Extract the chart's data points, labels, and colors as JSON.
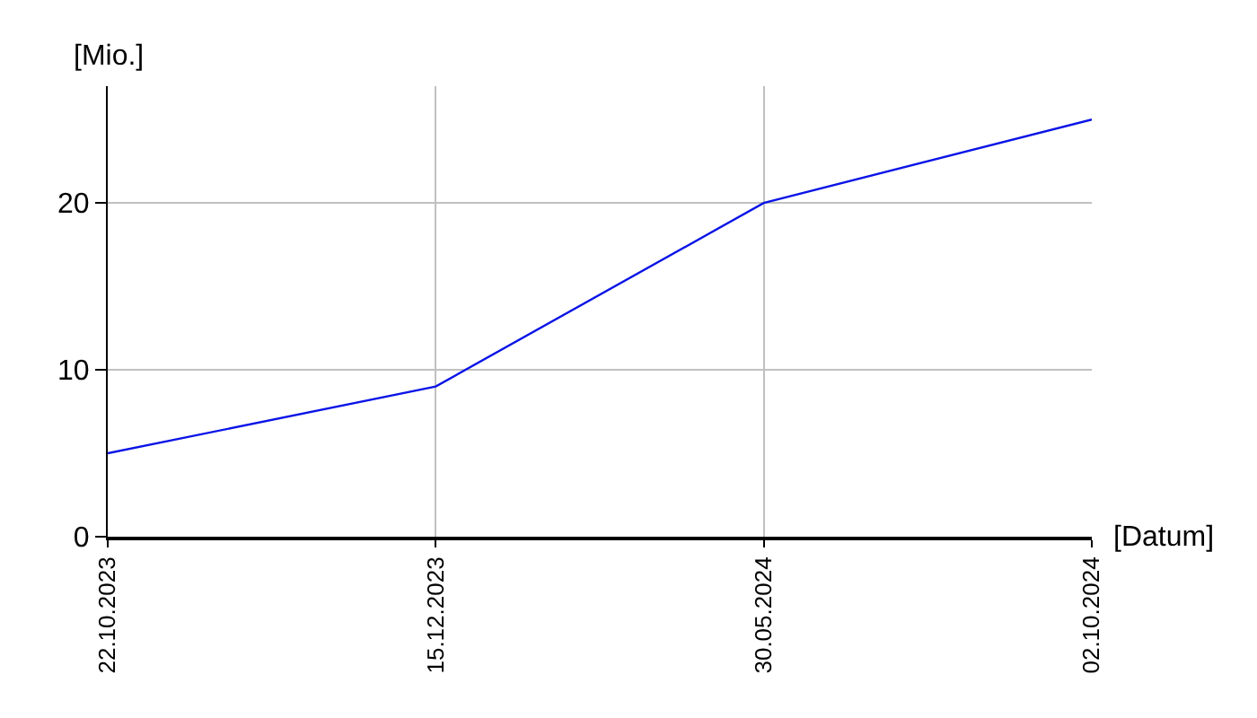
{
  "chart_data": {
    "type": "line",
    "xlabel": "[Datum]",
    "ylabel": "[Mio.]",
    "categories": [
      "22.10.2023",
      "15.12.2023",
      "30.05.2024",
      "02.10.2024"
    ],
    "series": [
      {
        "color": "#0a14e6",
        "values": [
          5,
          9,
          20,
          25
        ]
      }
    ],
    "ylim": [
      0,
      27
    ],
    "yticks": [
      0,
      10,
      20
    ],
    "grid": true,
    "legend": false,
    "marker": "none",
    "line_style": "solid"
  }
}
